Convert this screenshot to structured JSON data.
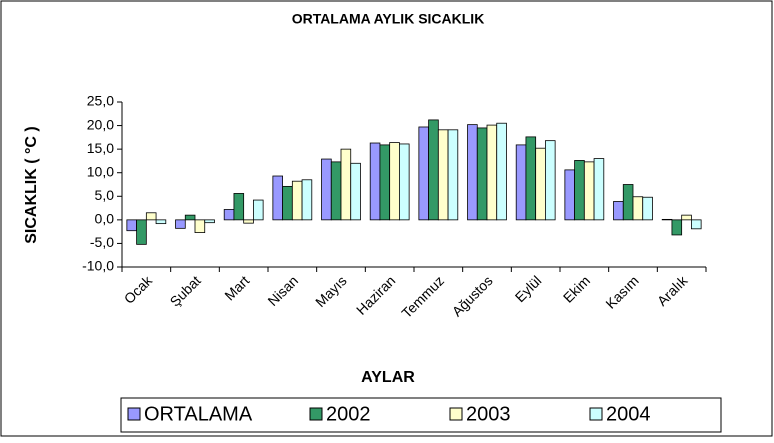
{
  "chart_data": {
    "type": "bar",
    "title": "ORTALAMA AYLIK SICAKLIK",
    "xlabel": "AYLAR",
    "ylabel": "SICAKLIK ( °C )",
    "categories": [
      "Ocak",
      "Şubat",
      "Mart",
      "Nisan",
      "Mayıs",
      "Haziran",
      "Temmuz",
      "Ağustos",
      "Eylül",
      "Ekim",
      "Kasım",
      "Aralık"
    ],
    "series": [
      {
        "name": "ORTALAMA",
        "color": "#9999ff",
        "values": [
          -2.3,
          -1.8,
          2.2,
          9.3,
          12.9,
          16.3,
          19.7,
          20.2,
          15.9,
          10.6,
          3.9,
          0.1
        ]
      },
      {
        "name": "2002",
        "color": "#339966",
        "values": [
          -5.2,
          1.0,
          5.6,
          7.1,
          12.3,
          15.9,
          21.2,
          19.5,
          17.6,
          12.6,
          7.5,
          -3.2
        ]
      },
      {
        "name": "2003",
        "color": "#ffffcc",
        "values": [
          1.5,
          -2.7,
          -0.7,
          8.2,
          15.0,
          16.4,
          19.1,
          20.1,
          15.2,
          12.3,
          4.9,
          1.0
        ]
      },
      {
        "name": "2004",
        "color": "#ccffff",
        "values": [
          -0.8,
          -0.6,
          4.2,
          8.5,
          12.0,
          16.1,
          19.1,
          20.5,
          16.8,
          13.0,
          4.8,
          -1.9
        ]
      }
    ],
    "ylim": [
      -10,
      25
    ],
    "yticks": [
      {
        "value": -10,
        "label": "-10,0"
      },
      {
        "value": -5,
        "label": "-5,0"
      },
      {
        "value": 0,
        "label": "0,0"
      },
      {
        "value": 5,
        "label": "5,0"
      },
      {
        "value": 10,
        "label": "10,0"
      },
      {
        "value": 15,
        "label": "15,0"
      },
      {
        "value": 20,
        "label": "20,0"
      },
      {
        "value": 25,
        "label": "25,0"
      }
    ],
    "grid": false,
    "legend": "bottom"
  }
}
